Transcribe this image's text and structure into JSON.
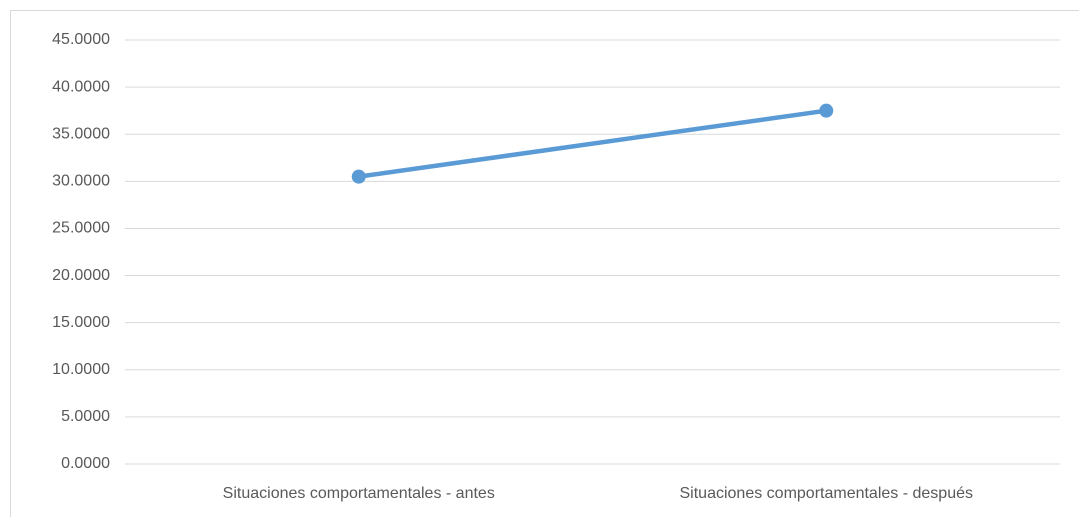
{
  "chart_data": {
    "type": "line",
    "categories": [
      "Situaciones comportamentales - antes",
      "Situaciones comportamentales - después"
    ],
    "series": [
      {
        "color": "#5b9bd5",
        "values": [
          30.5,
          37.5
        ]
      }
    ],
    "ylim": [
      0,
      45
    ],
    "yticks": [
      {
        "value": 0,
        "label": "0.0000"
      },
      {
        "value": 5,
        "label": "5.0000"
      },
      {
        "value": 10,
        "label": "10.0000"
      },
      {
        "value": 15,
        "label": "15.0000"
      },
      {
        "value": 20,
        "label": "20.0000"
      },
      {
        "value": 25,
        "label": "25.0000"
      },
      {
        "value": 30,
        "label": "30.0000"
      },
      {
        "value": 35,
        "label": "35.0000"
      },
      {
        "value": 40,
        "label": "40.0000"
      },
      {
        "value": 45,
        "label": "45.0000"
      }
    ],
    "grid": true
  }
}
